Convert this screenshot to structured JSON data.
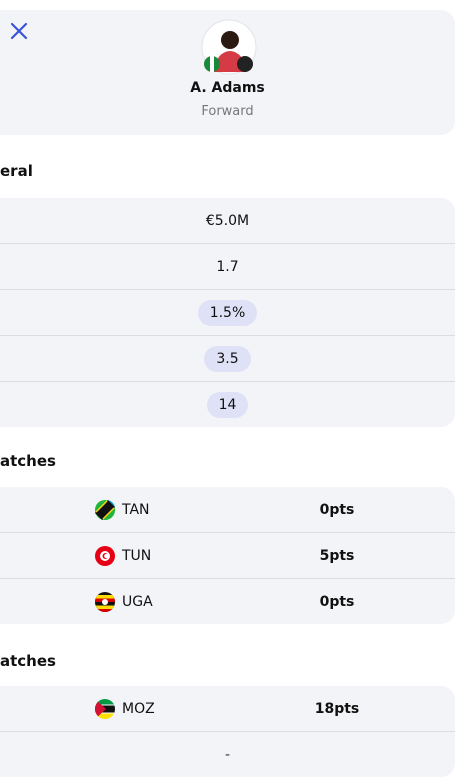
{
  "header": {
    "name": "A. Adams",
    "position": "Forward"
  },
  "general": {
    "title": "eral",
    "rows": [
      "€5.0M",
      "1.7",
      "1.5%",
      "3.5",
      "14"
    ]
  },
  "past_matches": {
    "title": "atches",
    "rows": [
      {
        "team": "TAN",
        "points": "0pts"
      },
      {
        "team": "TUN",
        "points": "5pts"
      },
      {
        "team": "UGA",
        "points": "0pts"
      }
    ]
  },
  "upcoming_matches": {
    "title": "atches",
    "rows": [
      {
        "team": "MOZ",
        "points": "18pts"
      },
      {
        "team": null,
        "points": "-"
      }
    ]
  }
}
